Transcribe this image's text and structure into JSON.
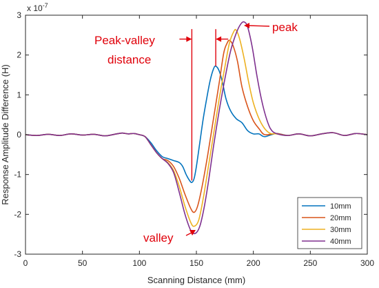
{
  "chart_data": {
    "type": "line",
    "title": "",
    "xlabel": "Scanning Distance (mm)",
    "ylabel": "Response Amplitude Difference (H)",
    "y_multiplier_label": "x 10",
    "y_multiplier_exponent": "-7",
    "xlim": [
      0,
      300
    ],
    "ylim": [
      -3,
      3
    ],
    "x_ticks": [
      "0",
      "50",
      "100",
      "150",
      "200",
      "250",
      "300"
    ],
    "y_ticks": [
      "-3",
      "-2",
      "-1",
      "0",
      "1",
      "2",
      "3"
    ],
    "grid": false,
    "legend_position": "bottom-right",
    "series": [
      {
        "name": "10mm",
        "color": "#0072bd",
        "points": [
          [
            0,
            0
          ],
          [
            10,
            -0.02
          ],
          [
            20,
            0.01
          ],
          [
            30,
            -0.02
          ],
          [
            40,
            0.02
          ],
          [
            50,
            -0.01
          ],
          [
            60,
            0.01
          ],
          [
            70,
            -0.03
          ],
          [
            80,
            0.02
          ],
          [
            85,
            0.04
          ],
          [
            90,
            0.02
          ],
          [
            95,
            0.03
          ],
          [
            100,
            0
          ],
          [
            105,
            -0.05
          ],
          [
            110,
            -0.2
          ],
          [
            115,
            -0.4
          ],
          [
            120,
            -0.55
          ],
          [
            125,
            -0.6
          ],
          [
            130,
            -0.65
          ],
          [
            135,
            -0.7
          ],
          [
            138,
            -0.8
          ],
          [
            141,
            -1.0
          ],
          [
            144,
            -1.15
          ],
          [
            146,
            -1.2
          ],
          [
            148,
            -1.1
          ],
          [
            150,
            -0.8
          ],
          [
            153,
            -0.2
          ],
          [
            156,
            0.4
          ],
          [
            159,
            0.9
          ],
          [
            162,
            1.35
          ],
          [
            165,
            1.65
          ],
          [
            167,
            1.72
          ],
          [
            170,
            1.6
          ],
          [
            173,
            1.3
          ],
          [
            176,
            0.9
          ],
          [
            180,
            0.6
          ],
          [
            185,
            0.4
          ],
          [
            190,
            0.3
          ],
          [
            195,
            0.1
          ],
          [
            200,
            0.02
          ],
          [
            205,
            0.02
          ],
          [
            210,
            -0.05
          ],
          [
            220,
            0.03
          ],
          [
            230,
            -0.02
          ],
          [
            240,
            0.02
          ],
          [
            250,
            -0.03
          ],
          [
            260,
            0.02
          ],
          [
            270,
            0.05
          ],
          [
            280,
            -0.02
          ],
          [
            290,
            0.03
          ],
          [
            300,
            0
          ]
        ]
      },
      {
        "name": "20mm",
        "color": "#d95319",
        "points": [
          [
            0,
            0
          ],
          [
            10,
            -0.02
          ],
          [
            20,
            0.01
          ],
          [
            30,
            -0.02
          ],
          [
            40,
            0.02
          ],
          [
            50,
            -0.01
          ],
          [
            60,
            0.01
          ],
          [
            70,
            -0.03
          ],
          [
            80,
            0.02
          ],
          [
            85,
            0.04
          ],
          [
            90,
            0.02
          ],
          [
            95,
            0.03
          ],
          [
            100,
            0
          ],
          [
            105,
            -0.05
          ],
          [
            110,
            -0.25
          ],
          [
            115,
            -0.45
          ],
          [
            120,
            -0.6
          ],
          [
            125,
            -0.65
          ],
          [
            130,
            -0.8
          ],
          [
            135,
            -1.1
          ],
          [
            140,
            -1.5
          ],
          [
            145,
            -1.85
          ],
          [
            148,
            -1.95
          ],
          [
            151,
            -1.8
          ],
          [
            155,
            -1.3
          ],
          [
            160,
            -0.5
          ],
          [
            165,
            0.4
          ],
          [
            170,
            1.3
          ],
          [
            174,
            2.05
          ],
          [
            177,
            2.3
          ],
          [
            179,
            2.37
          ],
          [
            182,
            2.25
          ],
          [
            186,
            1.85
          ],
          [
            190,
            1.2
          ],
          [
            195,
            0.7
          ],
          [
            200,
            0.35
          ],
          [
            205,
            0.15
          ],
          [
            210,
            0
          ],
          [
            220,
            0.03
          ],
          [
            230,
            -0.02
          ],
          [
            240,
            0.02
          ],
          [
            250,
            -0.03
          ],
          [
            260,
            0.02
          ],
          [
            270,
            0.05
          ],
          [
            280,
            -0.02
          ],
          [
            290,
            0.03
          ],
          [
            300,
            0
          ]
        ]
      },
      {
        "name": "30mm",
        "color": "#edb120",
        "points": [
          [
            0,
            0
          ],
          [
            10,
            -0.02
          ],
          [
            20,
            0.01
          ],
          [
            30,
            -0.02
          ],
          [
            40,
            0.02
          ],
          [
            50,
            -0.01
          ],
          [
            60,
            0.01
          ],
          [
            70,
            -0.03
          ],
          [
            80,
            0.02
          ],
          [
            85,
            0.04
          ],
          [
            90,
            0.02
          ],
          [
            95,
            0.03
          ],
          [
            100,
            0
          ],
          [
            105,
            -0.05
          ],
          [
            110,
            -0.25
          ],
          [
            115,
            -0.45
          ],
          [
            120,
            -0.6
          ],
          [
            125,
            -0.7
          ],
          [
            130,
            -0.9
          ],
          [
            135,
            -1.3
          ],
          [
            140,
            -1.8
          ],
          [
            145,
            -2.2
          ],
          [
            148,
            -2.3
          ],
          [
            152,
            -2.15
          ],
          [
            156,
            -1.6
          ],
          [
            160,
            -0.9
          ],
          [
            165,
            0
          ],
          [
            170,
            0.9
          ],
          [
            175,
            1.7
          ],
          [
            179,
            2.3
          ],
          [
            183,
            2.6
          ],
          [
            185,
            2.62
          ],
          [
            188,
            2.4
          ],
          [
            192,
            1.9
          ],
          [
            196,
            1.3
          ],
          [
            200,
            0.8
          ],
          [
            205,
            0.4
          ],
          [
            210,
            0.15
          ],
          [
            215,
            0.03
          ],
          [
            220,
            0.02
          ],
          [
            230,
            -0.02
          ],
          [
            240,
            0.02
          ],
          [
            250,
            -0.03
          ],
          [
            260,
            0.02
          ],
          [
            270,
            0.05
          ],
          [
            280,
            -0.02
          ],
          [
            290,
            0.03
          ],
          [
            300,
            0
          ]
        ]
      },
      {
        "name": "40mm",
        "color": "#7e2f8e",
        "points": [
          [
            0,
            0
          ],
          [
            10,
            -0.02
          ],
          [
            20,
            0.01
          ],
          [
            30,
            -0.02
          ],
          [
            40,
            0.02
          ],
          [
            50,
            -0.01
          ],
          [
            60,
            0.01
          ],
          [
            70,
            -0.03
          ],
          [
            80,
            0.02
          ],
          [
            85,
            0.04
          ],
          [
            90,
            0.02
          ],
          [
            95,
            0.03
          ],
          [
            100,
            0
          ],
          [
            105,
            -0.05
          ],
          [
            110,
            -0.25
          ],
          [
            115,
            -0.45
          ],
          [
            120,
            -0.6
          ],
          [
            125,
            -0.72
          ],
          [
            130,
            -0.95
          ],
          [
            135,
            -1.45
          ],
          [
            140,
            -2.0
          ],
          [
            145,
            -2.4
          ],
          [
            149,
            -2.48
          ],
          [
            153,
            -2.3
          ],
          [
            157,
            -1.8
          ],
          [
            161,
            -1.1
          ],
          [
            165,
            -0.3
          ],
          [
            170,
            0.6
          ],
          [
            175,
            1.4
          ],
          [
            180,
            2.1
          ],
          [
            185,
            2.55
          ],
          [
            189,
            2.78
          ],
          [
            192,
            2.83
          ],
          [
            195,
            2.7
          ],
          [
            199,
            2.2
          ],
          [
            203,
            1.5
          ],
          [
            207,
            0.9
          ],
          [
            211,
            0.45
          ],
          [
            215,
            0.15
          ],
          [
            220,
            0.03
          ],
          [
            230,
            -0.02
          ],
          [
            240,
            0.02
          ],
          [
            250,
            -0.03
          ],
          [
            260,
            0.02
          ],
          [
            270,
            0.05
          ],
          [
            280,
            -0.02
          ],
          [
            290,
            0.03
          ],
          [
            300,
            0
          ]
        ]
      }
    ],
    "annotations": {
      "peak_valley_label": [
        "Peak-valley",
        "distance"
      ],
      "peak_label": "peak",
      "valley_label": "valley",
      "color": "#e0000a",
      "valley_x": 146,
      "peak_x": 167
    }
  }
}
